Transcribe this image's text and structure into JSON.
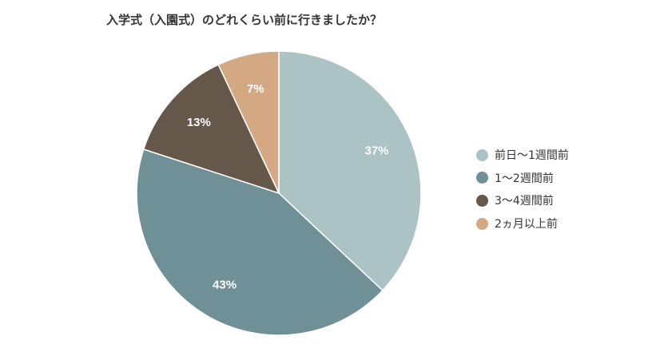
{
  "chart_data": {
    "type": "pie",
    "title": "入学式（入園式）のどれくらい前に行きましたか？",
    "categories": [
      "前日～1週間前",
      "1～2週間前",
      "3～4週間前",
      "2ヵ月以上前"
    ],
    "values": [
      37,
      43,
      13,
      7
    ],
    "value_labels": [
      "37%",
      "43%",
      "13%",
      "7%"
    ],
    "colors": [
      "#abc3c5",
      "#6e9096",
      "#66574b",
      "#d4a883"
    ],
    "legend_position": "right",
    "start_angle": "12 o'clock",
    "direction": "clockwise"
  }
}
